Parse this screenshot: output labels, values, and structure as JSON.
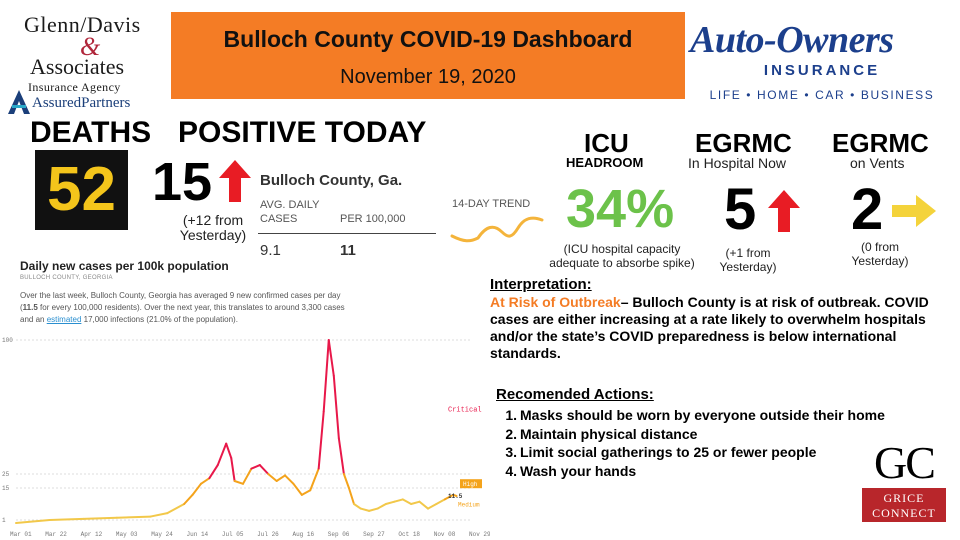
{
  "logos": {
    "gd_line1": "Glenn/Davis",
    "gd_amp": "&",
    "gd_line2": "Associates",
    "gd_line3": "Insurance Agency",
    "gd_assured": "AssuredPartners",
    "ao_name": "Auto-Owners",
    "ao_ins": "INSURANCE",
    "ao_tagline": "LIFE • HOME • CAR • BUSINESS",
    "gc_letters": "GC",
    "gc_word1": "GRICE",
    "gc_word2": "CONNECT"
  },
  "header": {
    "title": "Bulloch County COVID-19 Dashboard",
    "date": "November 19, 2020",
    "banner_color": "#f47c25"
  },
  "deaths": {
    "label": "DEATHS",
    "value": "52",
    "value_color": "#f4c51b"
  },
  "positive": {
    "label": "POSITIVE TODAY",
    "value": "15",
    "trend_icon": "red-up-arrow-icon",
    "note": "(+12 from Yesterday)"
  },
  "stat_card": {
    "title": "Bulloch County, Ga.",
    "col1_header": "AVG. DAILY CASES",
    "col2_header": "PER 100,000",
    "col1_value": "9.1",
    "col2_value": "11",
    "trend_label": "14-DAY TREND"
  },
  "icu": {
    "label": "ICU",
    "sub": "HEADROOM",
    "value": "34%",
    "value_color": "#6cc24a",
    "note": "(ICU hospital capacity adequate to absorbe spike)"
  },
  "egrmc_hospital": {
    "label": "EGRMC",
    "sub": "In Hospital Now",
    "value": "5",
    "trend_icon": "red-up-arrow-icon",
    "note": "(+1 from Yesterday)"
  },
  "egrmc_vents": {
    "label": "EGRMC",
    "sub": "on Vents",
    "value": "2",
    "trend_icon": "yellow-right-arrow-icon",
    "note": "(0 from Yesterday)"
  },
  "chart_panel": {
    "title": "Daily new cases per 100k population",
    "subtitle": "BULLOCH COUNTY, GEORGIA",
    "desc_part1": "Over the last week, Bulloch County, Georgia has averaged 9 new confirmed cases per day (",
    "desc_bold": "11.5",
    "desc_part2": " for every 100,000 residents). Over the next year, this translates to around 3,300 cases and an ",
    "desc_link": "estimated",
    "desc_part3": " 17,000 infections (21.0% of the population)."
  },
  "chart_data": {
    "type": "line",
    "title": "Daily new cases per 100k population",
    "x_ticks": [
      "Mar 01",
      "Mar 22",
      "Apr 12",
      "May 03",
      "May 24",
      "Jun 14",
      "Jul 05",
      "Jul 26",
      "Aug 16",
      "Sep 06",
      "Sep 27",
      "Oct 18",
      "Nov 08",
      "Nov 29"
    ],
    "y_ticks": [
      "100",
      "25",
      "15",
      "1"
    ],
    "zone_labels": {
      "critical": "Critical",
      "high": "High",
      "medium": "Medium"
    },
    "current_value_label": "11.5",
    "colors": {
      "critical": "#e8184a",
      "high": "#f4a31b",
      "medium": "#f2c84a"
    },
    "x_day": [
      0,
      20,
      40,
      60,
      80,
      90,
      100,
      105,
      110,
      115,
      120,
      125,
      128,
      130,
      135,
      140,
      145,
      150,
      155,
      160,
      165,
      170,
      175,
      180,
      183,
      186,
      189,
      192,
      195,
      198,
      201,
      205,
      210,
      215,
      220,
      225,
      230,
      235,
      240,
      245,
      250,
      255,
      260,
      262
    ],
    "values": [
      0.5,
      1,
      1.5,
      2,
      2.5,
      4,
      8,
      12,
      18,
      22,
      30,
      42,
      34,
      20,
      18,
      28,
      30,
      25,
      20,
      24,
      18,
      12,
      14,
      28,
      60,
      100,
      80,
      45,
      25,
      15,
      8,
      6,
      5,
      6,
      8,
      9,
      10,
      8,
      9,
      6,
      8,
      10,
      12,
      11.5
    ]
  },
  "interpretation": {
    "heading": "Interpretation:",
    "risk_label": "At Risk of Outbreak",
    "text": "– Bulloch County is at risk of outbreak. COVID cases are either increasing at a rate likely to overwhelm hospitals and/or the state’s COVID preparedness is below international standards."
  },
  "actions": {
    "heading": "Recomended Actions:",
    "items": [
      {
        "num": "1.",
        "text": "Masks should be worn by everyone outside their home"
      },
      {
        "num": "2.",
        "text": "Maintain physical distance"
      },
      {
        "num": "3.",
        "text": "Limit social gatherings to 25 or fewer people"
      },
      {
        "num": "4.",
        "text": "Wash your hands"
      }
    ]
  }
}
